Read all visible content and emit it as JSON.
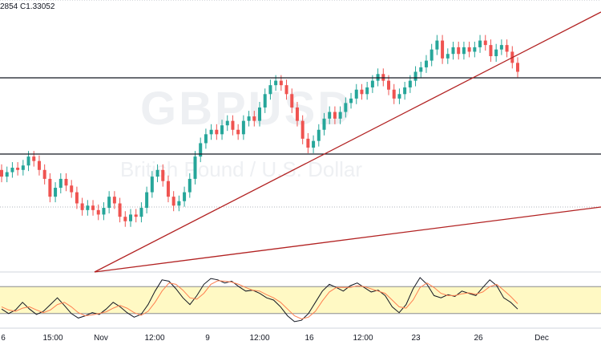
{
  "header": {
    "ohlc_text": "2854 C1.33052"
  },
  "watermark": {
    "symbol": "GBPUSD",
    "description": "British Pound / U.S. Dollar"
  },
  "colors": {
    "up": "#26a69a",
    "down": "#ef5350",
    "trendline": "#b22222",
    "level": "#131722",
    "stoch_k": "#131722",
    "stoch_d": "#ff7f50",
    "stoch_band": "#fff9c4"
  },
  "chart_data": [
    {
      "type": "candlestick",
      "x_tick_labels": [
        "6",
        "15:00",
        "Nov",
        "12:00",
        "9",
        "12:00",
        "16",
        "12:00",
        "23",
        "26",
        "Dec"
      ],
      "horizontal_levels": [
        "upper resistance",
        "lower support"
      ],
      "trendlines": [
        "steep rising trendline",
        "shallow rising trendline"
      ],
      "ohlc_last_close": 1.33052,
      "candles_normalized": [
        {
          "o": 0.4,
          "c": 0.37
        },
        {
          "o": 0.37,
          "c": 0.39
        },
        {
          "o": 0.39,
          "c": 0.41
        },
        {
          "o": 0.41,
          "c": 0.4
        },
        {
          "o": 0.4,
          "c": 0.42
        },
        {
          "o": 0.42,
          "c": 0.46
        },
        {
          "o": 0.46,
          "c": 0.44
        },
        {
          "o": 0.44,
          "c": 0.4
        },
        {
          "o": 0.4,
          "c": 0.36
        },
        {
          "o": 0.36,
          "c": 0.28
        },
        {
          "o": 0.28,
          "c": 0.32
        },
        {
          "o": 0.32,
          "c": 0.36
        },
        {
          "o": 0.36,
          "c": 0.33
        },
        {
          "o": 0.33,
          "c": 0.3
        },
        {
          "o": 0.3,
          "c": 0.25
        },
        {
          "o": 0.25,
          "c": 0.22
        },
        {
          "o": 0.22,
          "c": 0.24
        },
        {
          "o": 0.24,
          "c": 0.22
        },
        {
          "o": 0.22,
          "c": 0.2
        },
        {
          "o": 0.2,
          "c": 0.23
        },
        {
          "o": 0.23,
          "c": 0.28
        },
        {
          "o": 0.28,
          "c": 0.25
        },
        {
          "o": 0.25,
          "c": 0.19
        },
        {
          "o": 0.19,
          "c": 0.17
        },
        {
          "o": 0.17,
          "c": 0.2
        },
        {
          "o": 0.2,
          "c": 0.19
        },
        {
          "o": 0.19,
          "c": 0.23
        },
        {
          "o": 0.23,
          "c": 0.3
        },
        {
          "o": 0.3,
          "c": 0.37
        },
        {
          "o": 0.37,
          "c": 0.4
        },
        {
          "o": 0.4,
          "c": 0.35
        },
        {
          "o": 0.35,
          "c": 0.28
        },
        {
          "o": 0.28,
          "c": 0.24
        },
        {
          "o": 0.24,
          "c": 0.26
        },
        {
          "o": 0.26,
          "c": 0.3
        },
        {
          "o": 0.3,
          "c": 0.36
        },
        {
          "o": 0.36,
          "c": 0.46
        },
        {
          "o": 0.46,
          "c": 0.52
        },
        {
          "o": 0.52,
          "c": 0.56
        },
        {
          "o": 0.56,
          "c": 0.58
        },
        {
          "o": 0.58,
          "c": 0.56
        },
        {
          "o": 0.56,
          "c": 0.6
        },
        {
          "o": 0.6,
          "c": 0.62
        },
        {
          "o": 0.62,
          "c": 0.58
        },
        {
          "o": 0.58,
          "c": 0.56
        },
        {
          "o": 0.56,
          "c": 0.62
        },
        {
          "o": 0.62,
          "c": 0.64
        },
        {
          "o": 0.64,
          "c": 0.62
        },
        {
          "o": 0.62,
          "c": 0.68
        },
        {
          "o": 0.68,
          "c": 0.74
        },
        {
          "o": 0.74,
          "c": 0.78
        },
        {
          "o": 0.78,
          "c": 0.8
        },
        {
          "o": 0.8,
          "c": 0.78
        },
        {
          "o": 0.78,
          "c": 0.74
        },
        {
          "o": 0.74,
          "c": 0.68
        },
        {
          "o": 0.68,
          "c": 0.62
        },
        {
          "o": 0.62,
          "c": 0.54
        },
        {
          "o": 0.54,
          "c": 0.5
        },
        {
          "o": 0.5,
          "c": 0.53
        },
        {
          "o": 0.53,
          "c": 0.58
        },
        {
          "o": 0.58,
          "c": 0.63
        },
        {
          "o": 0.63,
          "c": 0.66
        },
        {
          "o": 0.66,
          "c": 0.63
        },
        {
          "o": 0.63,
          "c": 0.66
        },
        {
          "o": 0.66,
          "c": 0.7
        },
        {
          "o": 0.7,
          "c": 0.72
        },
        {
          "o": 0.72,
          "c": 0.76
        },
        {
          "o": 0.76,
          "c": 0.74
        },
        {
          "o": 0.74,
          "c": 0.77
        },
        {
          "o": 0.77,
          "c": 0.8
        },
        {
          "o": 0.8,
          "c": 0.83
        },
        {
          "o": 0.83,
          "c": 0.8
        },
        {
          "o": 0.8,
          "c": 0.76
        },
        {
          "o": 0.76,
          "c": 0.72
        },
        {
          "o": 0.72,
          "c": 0.74
        },
        {
          "o": 0.74,
          "c": 0.77
        },
        {
          "o": 0.77,
          "c": 0.8
        },
        {
          "o": 0.8,
          "c": 0.84
        },
        {
          "o": 0.84,
          "c": 0.86
        },
        {
          "o": 0.86,
          "c": 0.89
        },
        {
          "o": 0.89,
          "c": 0.94
        },
        {
          "o": 0.94,
          "c": 0.98
        },
        {
          "o": 0.98,
          "c": 0.9
        },
        {
          "o": 0.9,
          "c": 0.92
        },
        {
          "o": 0.92,
          "c": 0.95
        },
        {
          "o": 0.95,
          "c": 0.92
        },
        {
          "o": 0.92,
          "c": 0.95
        },
        {
          "o": 0.95,
          "c": 0.93
        },
        {
          "o": 0.93,
          "c": 0.95
        },
        {
          "o": 0.95,
          "c": 0.98
        },
        {
          "o": 0.98,
          "c": 0.96
        },
        {
          "o": 0.96,
          "c": 0.91
        },
        {
          "o": 0.91,
          "c": 0.94
        },
        {
          "o": 0.94,
          "c": 0.96
        },
        {
          "o": 0.96,
          "c": 0.93
        },
        {
          "o": 0.93,
          "c": 0.88
        },
        {
          "o": 0.88,
          "c": 0.84
        }
      ]
    },
    {
      "type": "line",
      "indicator": "stochastic",
      "series": [
        {
          "key": "k",
          "values": [
            0.3,
            0.2,
            0.28,
            0.45,
            0.3,
            0.18,
            0.25,
            0.4,
            0.55,
            0.38,
            0.2,
            0.1,
            0.15,
            0.22,
            0.18,
            0.3,
            0.45,
            0.35,
            0.22,
            0.12,
            0.18,
            0.4,
            0.7,
            0.95,
            0.92,
            0.75,
            0.55,
            0.4,
            0.6,
            0.85,
            0.98,
            0.95,
            0.88,
            0.92,
            0.8,
            0.7,
            0.72,
            0.65,
            0.55,
            0.5,
            0.35,
            0.15,
            0.02,
            0.05,
            0.2,
            0.45,
            0.7,
            0.85,
            0.78,
            0.7,
            0.82,
            0.88,
            0.78,
            0.68,
            0.72,
            0.6,
            0.35,
            0.22,
            0.4,
            0.75,
            1.0,
            0.85,
            0.6,
            0.55,
            0.62,
            0.58,
            0.7,
            0.65,
            0.6,
            0.78,
            0.95,
            0.82,
            0.55,
            0.45,
            0.3
          ]
        },
        {
          "key": "d",
          "values": [
            0.35,
            0.28,
            0.25,
            0.32,
            0.35,
            0.28,
            0.22,
            0.28,
            0.4,
            0.45,
            0.35,
            0.22,
            0.15,
            0.17,
            0.2,
            0.24,
            0.32,
            0.38,
            0.32,
            0.22,
            0.16,
            0.25,
            0.45,
            0.7,
            0.88,
            0.85,
            0.72,
            0.55,
            0.52,
            0.65,
            0.85,
            0.93,
            0.92,
            0.9,
            0.85,
            0.78,
            0.72,
            0.7,
            0.62,
            0.55,
            0.45,
            0.3,
            0.15,
            0.08,
            0.12,
            0.25,
            0.48,
            0.68,
            0.78,
            0.78,
            0.78,
            0.82,
            0.8,
            0.75,
            0.7,
            0.65,
            0.5,
            0.35,
            0.32,
            0.5,
            0.78,
            0.88,
            0.78,
            0.65,
            0.6,
            0.6,
            0.64,
            0.66,
            0.63,
            0.68,
            0.8,
            0.85,
            0.72,
            0.58,
            0.42
          ]
        }
      ],
      "band_levels_normalized": [
        0.2,
        0.8
      ]
    }
  ]
}
